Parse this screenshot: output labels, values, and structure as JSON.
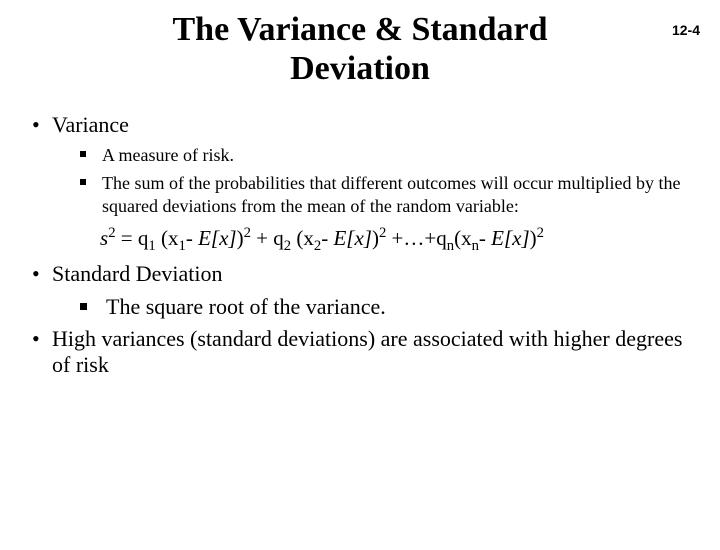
{
  "page_number": "12-4",
  "title_line1": "The Variance & Standard",
  "title_line2": "Deviation",
  "bullets": {
    "variance": {
      "label": "Variance",
      "sub1": "A measure of risk.",
      "sub2": "The sum of the probabilities that different outcomes will occur multiplied by the squared deviations from the mean of the random variable:"
    },
    "stddev": {
      "label": "Standard Deviation",
      "sub1": "The square root of the variance."
    },
    "highvar": {
      "label": "High variances (standard deviations) are associated with higher degrees of risk"
    }
  },
  "formula": {
    "s": "s",
    "eq": " = q",
    "x": "x",
    "Ex": "E[x]",
    "plus": " + q",
    "ellip": " +…+q",
    "open": " (",
    "minus": "- ",
    "close": ")",
    "idx1": "1",
    "idx2": "2",
    "idxn": "n",
    "sup2": "2"
  },
  "style": {
    "background": "#ffffff",
    "text_color": "#000000",
    "title_fontsize": 34,
    "body_fontsize": 22,
    "sub_fontsize": 18
  }
}
